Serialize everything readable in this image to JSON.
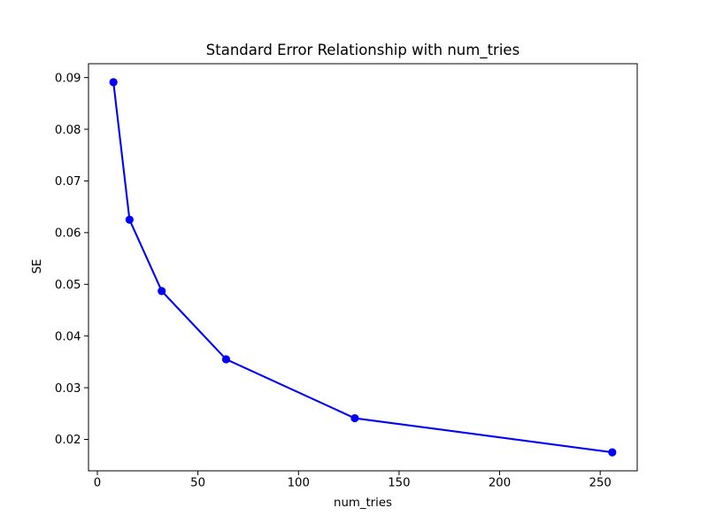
{
  "figure": {
    "background": "#ffffff"
  },
  "chart_data": {
    "type": "line",
    "title": "Standard Error Relationship with num_tries",
    "xlabel": "num_tries",
    "ylabel": "SE",
    "series": [
      {
        "name": "SE",
        "color": "#0000ff",
        "marker": "circle",
        "line_style": "solid",
        "x": [
          8,
          16,
          32,
          64,
          128,
          256
        ],
        "y": [
          0.0891,
          0.0625,
          0.0487,
          0.0355,
          0.0241,
          0.0175
        ]
      }
    ],
    "xlim": [
      -4.4,
      268.4
    ],
    "ylim": [
      0.01392,
      0.09268
    ],
    "x_ticks": {
      "values": [
        0,
        50,
        100,
        150,
        200,
        250
      ],
      "labels": [
        "0",
        "50",
        "100",
        "150",
        "200",
        "250"
      ]
    },
    "y_ticks": {
      "values": [
        0.02,
        0.03,
        0.04,
        0.05,
        0.06,
        0.07,
        0.08,
        0.09
      ],
      "labels": [
        "0.02",
        "0.03",
        "0.04",
        "0.05",
        "0.06",
        "0.07",
        "0.08",
        "0.09"
      ]
    },
    "grid": false,
    "legend_position": "none"
  }
}
